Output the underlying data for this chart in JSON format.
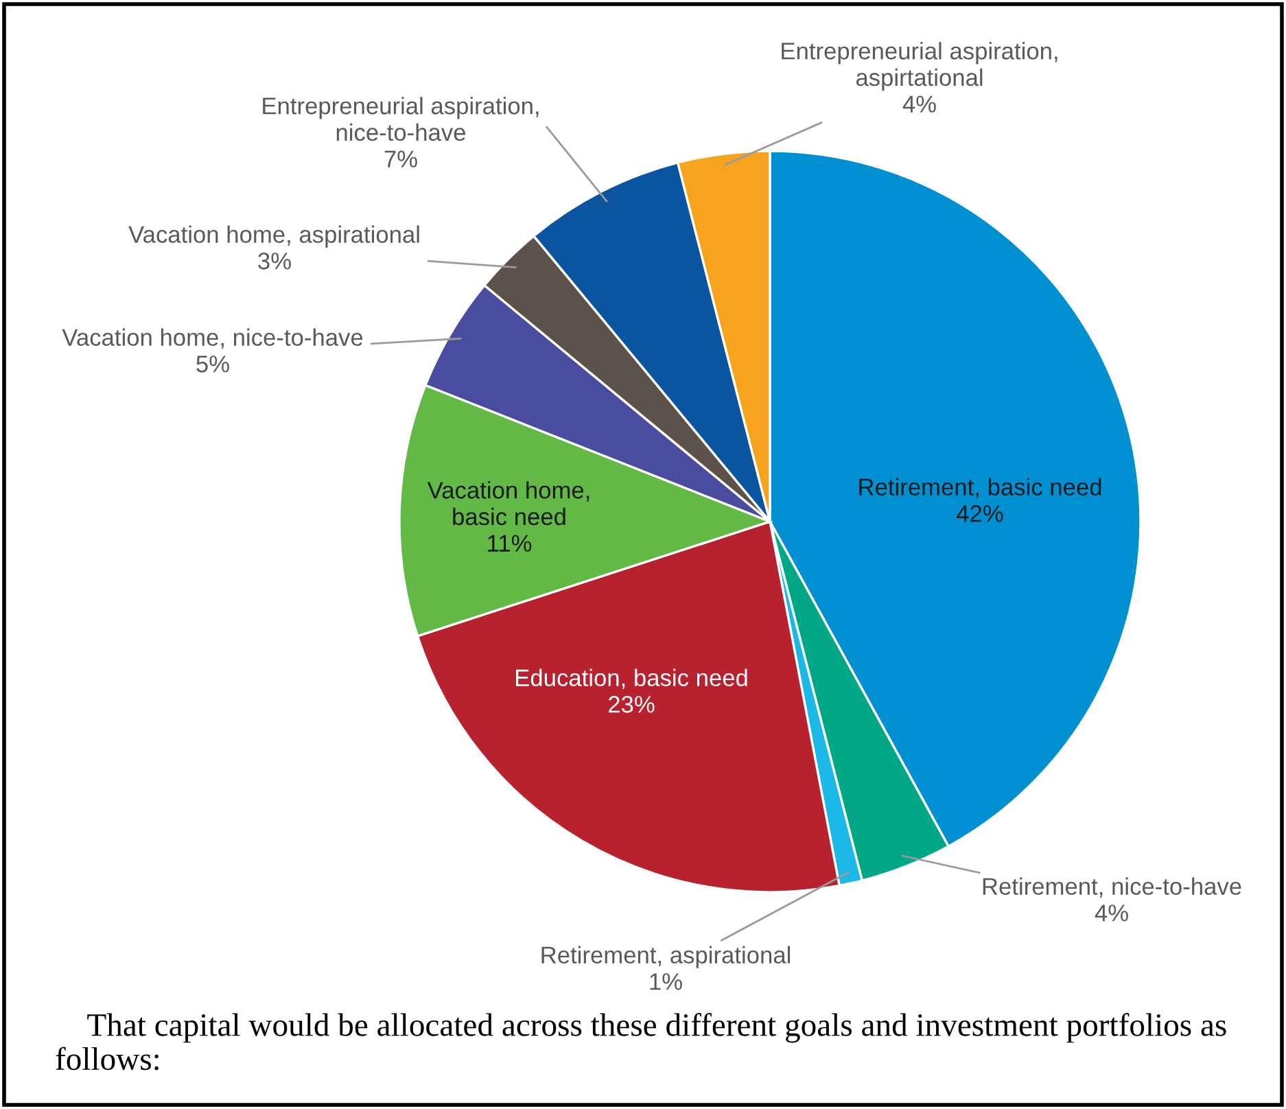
{
  "chart_data": {
    "type": "pie",
    "categories": [
      "Retirement, basic need",
      "Retirement, nice-to-have",
      "Retirement, aspirational",
      "Education, basic need",
      "Vacation home, basic need",
      "Vacation home, nice-to-have",
      "Vacation home, aspirational",
      "Entrepreneurial aspiration, nice-to-have",
      "Entrepreneurial aspiration, aspirtational"
    ],
    "values": [
      42,
      4,
      1,
      23,
      11,
      5,
      3,
      7,
      4
    ],
    "colors": [
      "#0090d2",
      "#00a888",
      "#1cb9e8",
      "#b8222f",
      "#63b946",
      "#4a4c9f",
      "#5d524b",
      "#0b55a0",
      "#f6a31d"
    ],
    "value_labels": [
      "42%",
      "4%",
      "1%",
      "23%",
      "11%",
      "5%",
      "3%",
      "7%",
      "4%"
    ],
    "annotations": [
      "That capital would be allocated across these different goals and investment portfolios as follows:"
    ]
  }
}
